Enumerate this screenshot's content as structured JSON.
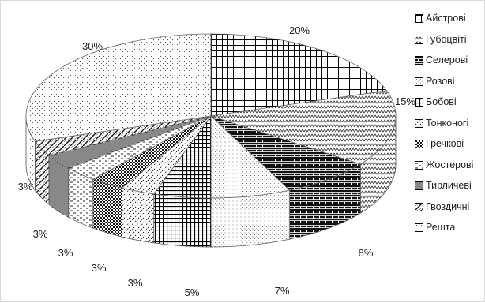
{
  "chart_data": {
    "type": "pie",
    "three_d": true,
    "legend_position": "right",
    "categories": [
      "Айстрові",
      "Губоцвіті",
      "Селерові",
      "Розові",
      "Бобові",
      "Тонконогі",
      "Гречкові",
      "Жостерові",
      "Тирличеві",
      "Гвоздичні",
      "Решта"
    ],
    "values": [
      20,
      15,
      8,
      7,
      5,
      3,
      3,
      3,
      3,
      3,
      30
    ],
    "data_labels": [
      "20%",
      "15%",
      "8%",
      "7%",
      "5%",
      "3%",
      "3%",
      "3%",
      "3%",
      "3%",
      "30%"
    ],
    "patterns": [
      "grid",
      "zigzag",
      "brick",
      "dots-light",
      "grid-dense",
      "diag-dots",
      "checker",
      "dashes",
      "horizontal",
      "wave",
      "dots"
    ]
  }
}
